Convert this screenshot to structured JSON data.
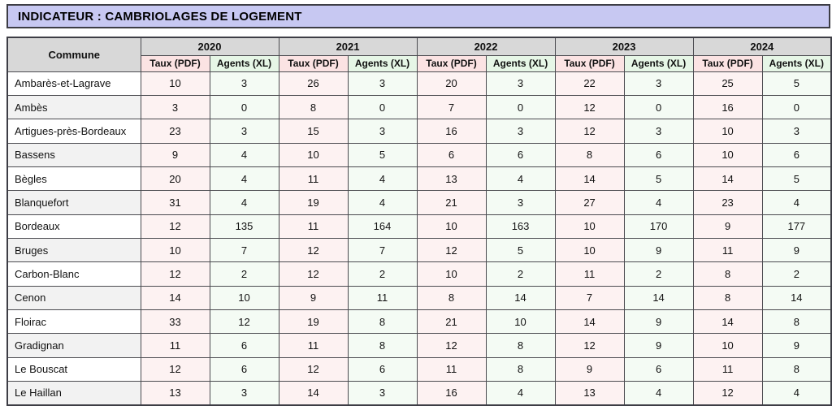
{
  "banner": {
    "title": "INDICATEUR : CAMBRIOLAGES DE LOGEMENT"
  },
  "table": {
    "commune_header": "Commune",
    "years": [
      "2020",
      "2021",
      "2022",
      "2023",
      "2024"
    ],
    "sub_headers": {
      "taux": "Taux (PDF)",
      "agents": "Agents (XL)"
    },
    "rows": [
      {
        "commune": "Ambarès-et-Lagrave",
        "values": [
          10,
          3,
          26,
          3,
          20,
          3,
          22,
          3,
          25,
          5
        ]
      },
      {
        "commune": "Ambès",
        "values": [
          3,
          0,
          8,
          0,
          7,
          0,
          12,
          0,
          16,
          0
        ]
      },
      {
        "commune": "Artigues-près-Bordeaux",
        "values": [
          23,
          3,
          15,
          3,
          16,
          3,
          12,
          3,
          10,
          3
        ]
      },
      {
        "commune": "Bassens",
        "values": [
          9,
          4,
          10,
          5,
          6,
          6,
          8,
          6,
          10,
          6
        ]
      },
      {
        "commune": "Bègles",
        "values": [
          20,
          4,
          11,
          4,
          13,
          4,
          14,
          5,
          14,
          5
        ]
      },
      {
        "commune": "Blanquefort",
        "values": [
          31,
          4,
          19,
          4,
          21,
          3,
          27,
          4,
          23,
          4
        ]
      },
      {
        "commune": "Bordeaux",
        "values": [
          12,
          135,
          11,
          164,
          10,
          163,
          10,
          170,
          9,
          177
        ]
      },
      {
        "commune": "Bruges",
        "values": [
          10,
          7,
          12,
          7,
          12,
          5,
          10,
          9,
          11,
          9
        ]
      },
      {
        "commune": "Carbon-Blanc",
        "values": [
          12,
          2,
          12,
          2,
          10,
          2,
          11,
          2,
          8,
          2
        ]
      },
      {
        "commune": "Cenon",
        "values": [
          14,
          10,
          9,
          11,
          8,
          14,
          7,
          14,
          8,
          14
        ]
      },
      {
        "commune": "Floirac",
        "values": [
          33,
          12,
          19,
          8,
          21,
          10,
          14,
          9,
          14,
          8
        ]
      },
      {
        "commune": "Gradignan",
        "values": [
          11,
          6,
          11,
          8,
          12,
          8,
          12,
          9,
          10,
          9
        ]
      },
      {
        "commune": "Le Bouscat",
        "values": [
          12,
          6,
          12,
          6,
          11,
          8,
          9,
          6,
          11,
          8
        ]
      },
      {
        "commune": "Le Haillan",
        "values": [
          13,
          3,
          14,
          3,
          16,
          4,
          13,
          4,
          12,
          4
        ]
      }
    ],
    "colors": {
      "banner_bg": "#c7c8f2",
      "header_gray": "#d8d8d8",
      "taux_header_pink": "#fbe3e3",
      "agents_header_green": "#e6f6e6",
      "taux_cell_pink": "#fdf2f2",
      "agents_cell_green": "#f4fbf4",
      "alt_row_gray": "#f2f2f2",
      "border": "#4b4b50"
    }
  }
}
